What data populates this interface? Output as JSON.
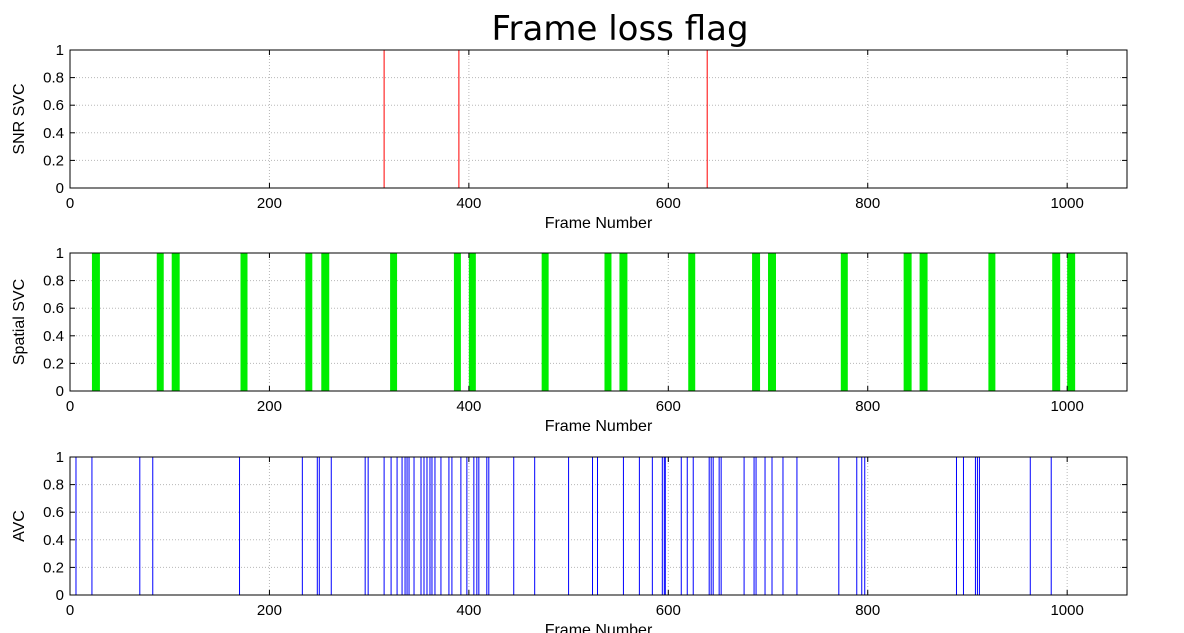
{
  "chart_data": [
    {
      "type": "line",
      "title": "Frame loss flag",
      "xlabel": "Frame Number",
      "ylabel": "SNR SVC",
      "xlim": [
        0,
        1060
      ],
      "ylim": [
        0,
        1
      ],
      "xticks": [
        0,
        200,
        400,
        600,
        800,
        1000
      ],
      "yticks": [
        0,
        0.2,
        0.4,
        0.6,
        0.8,
        1
      ],
      "ytick_labels": [
        "0",
        "0.2",
        "0.4",
        "0.6",
        "0.8",
        "1"
      ],
      "grid": true,
      "color": "#ff0000",
      "series": [
        {
          "loss_frames": [
            315,
            390,
            639
          ]
        }
      ]
    },
    {
      "type": "line",
      "title": "",
      "xlabel": "Frame Number",
      "ylabel": "Spatial SVC",
      "xlim": [
        0,
        1060
      ],
      "ylim": [
        0,
        1
      ],
      "xticks": [
        0,
        200,
        400,
        600,
        800,
        1000
      ],
      "yticks": [
        0,
        0.2,
        0.4,
        0.6,
        0.8,
        1
      ],
      "ytick_labels": [
        "0",
        "0.2",
        "0.4",
        "0.6",
        "0.8",
        "1"
      ],
      "grid": true,
      "color": "#00ee00",
      "series": [
        {
          "loss_ranges": [
            [
              22,
              30
            ],
            [
              87,
              94
            ],
            [
              102,
              110
            ],
            [
              171,
              178
            ],
            [
              236,
              243
            ],
            [
              252,
              260
            ],
            [
              321,
              328
            ],
            [
              385,
              392
            ],
            [
              400,
              407
            ],
            [
              473,
              480
            ],
            [
              536,
              543
            ],
            [
              551,
              559
            ],
            [
              620,
              627
            ],
            [
              684,
              692
            ],
            [
              700,
              708
            ],
            [
              773,
              780
            ],
            [
              836,
              844
            ],
            [
              852,
              860
            ],
            [
              921,
              928
            ],
            [
              985,
              993
            ],
            [
              1000,
              1008
            ]
          ]
        }
      ]
    },
    {
      "type": "line",
      "title": "",
      "xlabel": "Frame Number",
      "ylabel": "AVC",
      "xlim": [
        0,
        1060
      ],
      "ylim": [
        0,
        1
      ],
      "xticks": [
        0,
        200,
        400,
        600,
        800,
        1000
      ],
      "yticks": [
        0,
        0.2,
        0.4,
        0.6,
        0.8,
        1
      ],
      "ytick_labels": [
        "0",
        "0.2",
        "0.4",
        "0.6",
        "0.8",
        "1"
      ],
      "grid": true,
      "color": "#0000ff",
      "series": [
        {
          "loss_frames": [
            6,
            22,
            70,
            83,
            170,
            233,
            248,
            250,
            262,
            296,
            299,
            315,
            322,
            328,
            333,
            336,
            338,
            340,
            345,
            352,
            355,
            358,
            361,
            363,
            366,
            372,
            380,
            383,
            392,
            398,
            405,
            408,
            410,
            418,
            420,
            445,
            466,
            500,
            524,
            529,
            555,
            571,
            584,
            594,
            596,
            597,
            613,
            619,
            625,
            641,
            643,
            645,
            651,
            653,
            676,
            686,
            688,
            697,
            704,
            715,
            729,
            771,
            789,
            794,
            797,
            889,
            896,
            908,
            910,
            912,
            963,
            984
          ]
        }
      ]
    }
  ]
}
